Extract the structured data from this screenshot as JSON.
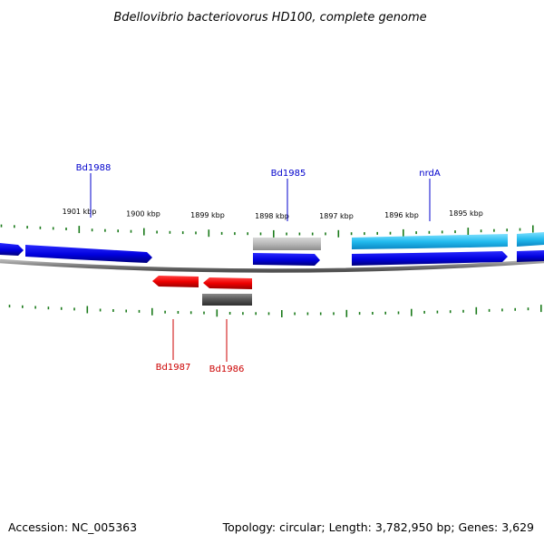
{
  "title": "Bdellovibrio bacteriovorus HD100, complete genome",
  "footer": {
    "accession": "Accession: NC_005363",
    "topology": "Topology: circular; Length: 3,782,950 bp; Genes: 3,629"
  },
  "colors": {
    "plus_strand": "#0000cc",
    "gene_cyan": "#22bbee",
    "minus_red": "#ee0000",
    "pseudo_light": "#b8b8b8",
    "pseudo_dark": "#555555",
    "backbone": "#7a7a7a",
    "tick_green": "#1a7a1a",
    "plus_label": "#0000cc",
    "minus_label": "#cc0000"
  },
  "ticks": [
    {
      "label": "1901 kbp"
    },
    {
      "label": "1900 kbp"
    },
    {
      "label": "1899 kbp"
    },
    {
      "label": "1898 kbp"
    },
    {
      "label": "1897 kbp"
    },
    {
      "label": "1896 kbp"
    },
    {
      "label": "1895 kbp"
    }
  ],
  "gene_labels": [
    {
      "name": "Bd1988",
      "strand": "plus"
    },
    {
      "name": "Bd1985",
      "strand": "plus"
    },
    {
      "name": "nrdA",
      "strand": "plus"
    },
    {
      "name": "Bd1987",
      "strand": "minus"
    },
    {
      "name": "Bd1986",
      "strand": "minus"
    }
  ]
}
